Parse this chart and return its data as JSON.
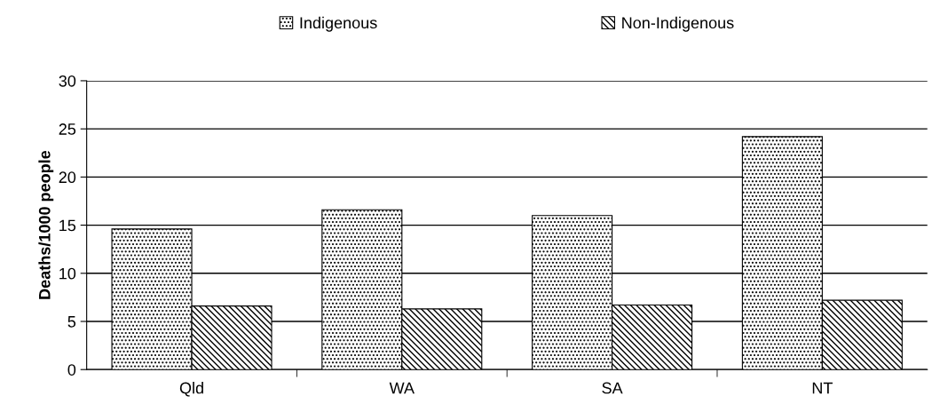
{
  "chart_data": {
    "type": "bar",
    "ylabel": "Deaths/1000 people",
    "categories": [
      "Qld",
      "WA",
      "SA",
      "NT"
    ],
    "series": [
      {
        "name": "Indigenous",
        "color": "#000000",
        "values": [
          14.6,
          16.6,
          16.0,
          24.2
        ]
      },
      {
        "name": "Non-Indigenous",
        "color": "#000000",
        "values": [
          6.6,
          6.3,
          6.7,
          7.2
        ]
      }
    ],
    "ylim": [
      0,
      30
    ],
    "yticks": [
      0,
      5,
      10,
      15,
      20,
      25,
      30
    ],
    "grid": "y",
    "legend": "top"
  }
}
